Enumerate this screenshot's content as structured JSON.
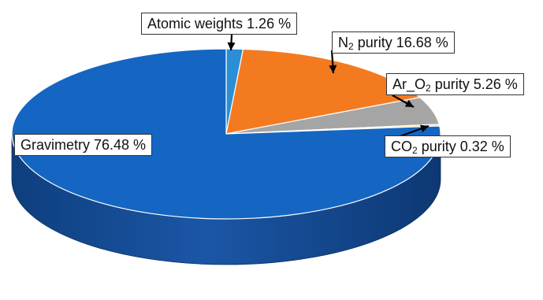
{
  "chart_data": {
    "type": "pie",
    "style": "3d",
    "slices": [
      {
        "base": "Atomic weights",
        "sub": "",
        "suffix": "",
        "value": 1.26,
        "value_label": "1.26 %",
        "color": "#2A8FD6"
      },
      {
        "base": "N",
        "sub": "2",
        "suffix": " purity",
        "value": 16.68,
        "value_label": "16.68 %",
        "color": "#F47A20"
      },
      {
        "base": "Ar_O",
        "sub": "2",
        "suffix": " purity",
        "value": 5.26,
        "value_label": "5.26 %",
        "color": "#A5A5A5"
      },
      {
        "base": "CO",
        "sub": "2",
        "suffix": " purity",
        "value": 0.32,
        "value_label": "0.32 %",
        "color": "#F5D98E"
      },
      {
        "base": "Gravimetry",
        "sub": "",
        "suffix": "",
        "value": 76.48,
        "value_label": "76.48 %",
        "color": "#1466C2"
      }
    ]
  }
}
